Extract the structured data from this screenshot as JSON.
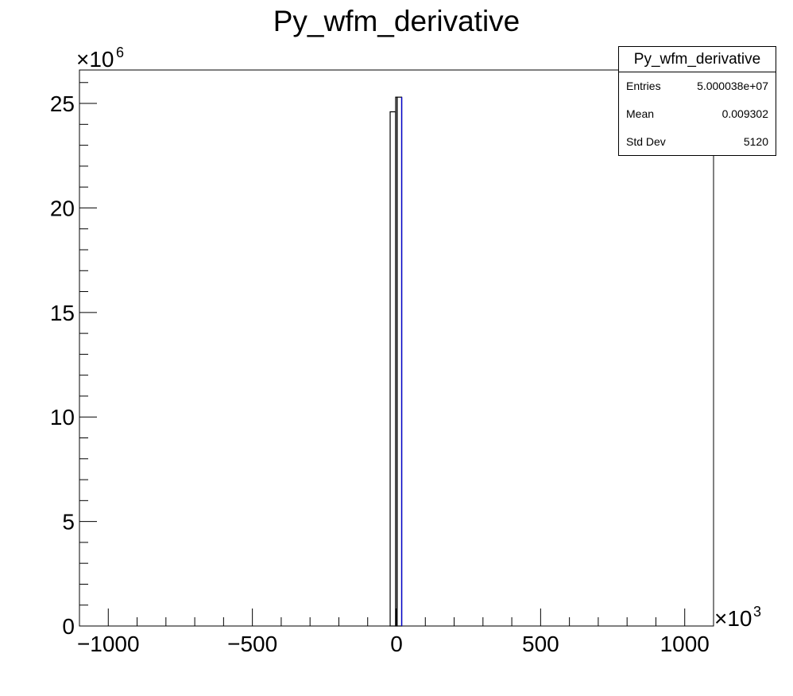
{
  "chart_data": {
    "type": "bar",
    "title": "Py_wfm_derivative",
    "x_multiplier": "×10",
    "x_multiplier_exp": "3",
    "y_multiplier": "×10",
    "y_multiplier_exp": "6",
    "xlim": [
      -1100,
      1100
    ],
    "ylim": [
      0,
      26.6
    ],
    "x_ticks": [
      -1000,
      -500,
      0,
      500,
      1000
    ],
    "x_tick_labels": [
      "−1000",
      "−500",
      "0",
      "500",
      "1000"
    ],
    "y_ticks": [
      0,
      5,
      10,
      15,
      20,
      25
    ],
    "y_tick_labels": [
      "0",
      "5",
      "10",
      "15",
      "20",
      "25"
    ],
    "bins": [
      {
        "x_low": -22,
        "x_high": -3,
        "value": 24.6
      },
      {
        "x_low": -3,
        "x_high": 2,
        "value": 25.3
      },
      {
        "x_low": 2,
        "x_high": 18,
        "value": 25.3
      }
    ],
    "line_color": "#000000",
    "accent_color": "#0000cc",
    "grid": false
  },
  "stats_box": {
    "name": "Py_wfm_derivative",
    "rows": [
      {
        "label": "Entries",
        "value": "5.000038e+07"
      },
      {
        "label": "Mean",
        "value": "0.009302"
      },
      {
        "label": "Std Dev",
        "value": "5120"
      }
    ]
  }
}
